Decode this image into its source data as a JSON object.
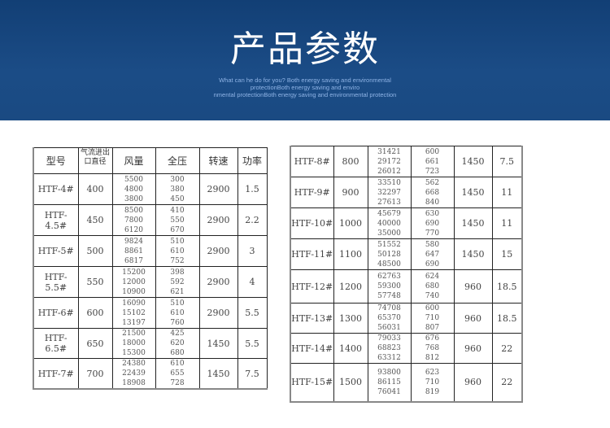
{
  "banner": {
    "title": "产品参数",
    "subtitle_lines": [
      "What can he do for you? Both energy saving and environmental",
      "protectionBoth energy saving and enviro",
      "nmental protectionBoth energy saving and environmental protection"
    ],
    "bg_color": "#1a4a82"
  },
  "table": {
    "headers": [
      "型号",
      "气流进出口直径",
      "风量",
      "全压",
      "转速",
      "功率"
    ],
    "left_rows": [
      {
        "model": "HTF-4#",
        "diameter": "400",
        "airflow": [
          "5500",
          "4800",
          "3800"
        ],
        "pressure": [
          "300",
          "380",
          "450"
        ],
        "speed": "2900",
        "power": "1.5"
      },
      {
        "model": "HTF-4.5#",
        "diameter": "450",
        "airflow": [
          "8500",
          "7800",
          "6120"
        ],
        "pressure": [
          "410",
          "550",
          "670"
        ],
        "speed": "2900",
        "power": "2.2"
      },
      {
        "model": "HTF-5#",
        "diameter": "500",
        "airflow": [
          "9824",
          "8861",
          "6817"
        ],
        "pressure": [
          "510",
          "610",
          "752"
        ],
        "speed": "2900",
        "power": "3"
      },
      {
        "model": "HTF-5.5#",
        "diameter": "550",
        "airflow": [
          "15200",
          "12000",
          "10900"
        ],
        "pressure": [
          "398",
          "592",
          "621"
        ],
        "speed": "2900",
        "power": "4"
      },
      {
        "model": "HTF-6#",
        "diameter": "600",
        "airflow": [
          "16090",
          "15102",
          "13197"
        ],
        "pressure": [
          "510",
          "610",
          "760"
        ],
        "speed": "2900",
        "power": "5.5"
      },
      {
        "model": "HTF-6.5#",
        "diameter": "650",
        "airflow": [
          "21500",
          "18000",
          "15300"
        ],
        "pressure": [
          "425",
          "620",
          "680"
        ],
        "speed": "1450",
        "power": "5.5"
      },
      {
        "model": "HTF-7#",
        "diameter": "700",
        "airflow": [
          "24380",
          "22439",
          "18908"
        ],
        "pressure": [
          "610",
          "655",
          "728"
        ],
        "speed": "1450",
        "power": "7.5"
      }
    ],
    "right_rows": [
      {
        "model": "HTF-8#",
        "diameter": "800",
        "airflow": [
          "31421",
          "29172",
          "26012"
        ],
        "pressure": [
          "600",
          "661",
          "723"
        ],
        "speed": "1450",
        "power": "7.5"
      },
      {
        "model": "HTF-9#",
        "diameter": "900",
        "airflow": [
          "33510",
          "32297",
          "27613"
        ],
        "pressure": [
          "562",
          "668",
          "840"
        ],
        "speed": "1450",
        "power": "11"
      },
      {
        "model": "HTF-10#",
        "diameter": "1000",
        "airflow": [
          "45679",
          "40000",
          "35000"
        ],
        "pressure": [
          "630",
          "690",
          "770"
        ],
        "speed": "1450",
        "power": "11"
      },
      {
        "model": "HTF-11#",
        "diameter": "1100",
        "airflow": [
          "51552",
          "50128",
          "48500"
        ],
        "pressure": [
          "580",
          "647",
          "690"
        ],
        "speed": "1450",
        "power": "15"
      },
      {
        "model": "HTF-12#",
        "diameter": "1200",
        "airflow": [
          "62763",
          "59300",
          "57748"
        ],
        "pressure": [
          "624",
          "680",
          "740"
        ],
        "speed": "960",
        "power": "18.5"
      },
      {
        "model": "HTF-13#",
        "diameter": "1300",
        "airflow": [
          "74708",
          "65370",
          "56031"
        ],
        "pressure": [
          "600",
          "710",
          "807"
        ],
        "speed": "960",
        "power": "18.5"
      },
      {
        "model": "HTF-14#",
        "diameter": "1400",
        "airflow": [
          "79033",
          "68823",
          "63312"
        ],
        "pressure": [
          "676",
          "768",
          "812"
        ],
        "speed": "960",
        "power": "22"
      },
      {
        "model": "HTF-15#",
        "diameter": "1500",
        "airflow": [
          "93800",
          "86115",
          "76041"
        ],
        "pressure": [
          "623",
          "710",
          "819"
        ],
        "speed": "960",
        "power": "22"
      }
    ]
  }
}
